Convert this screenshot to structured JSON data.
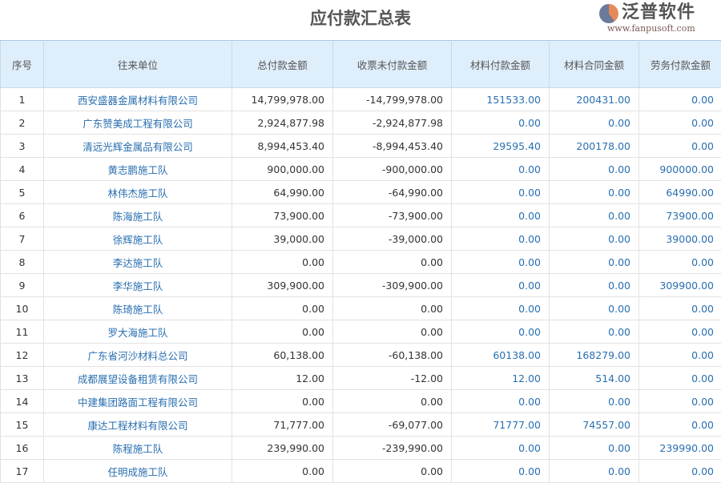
{
  "title": "应付款汇总表",
  "columns": [
    "序号",
    "往来单位",
    "总付款金额",
    "收票未付款金额",
    "材料付款金额",
    "材料合同金额",
    "劳务付款金额"
  ],
  "rows": [
    [
      "1",
      "西安盛器金属材料有限公司",
      "14,799,978.00",
      "-14,799,978.00",
      "151533.00",
      "200431.00",
      "0.00"
    ],
    [
      "2",
      "广东赞美成工程有限公司",
      "2,924,877.98",
      "-2,924,877.98",
      "0.00",
      "0.00",
      "0.00"
    ],
    [
      "3",
      "清远光辉金属品有限公司",
      "8,994,453.40",
      "-8,994,453.40",
      "29595.40",
      "200178.00",
      "0.00"
    ],
    [
      "4",
      "黄志鹏施工队",
      "900,000.00",
      "-900,000.00",
      "0.00",
      "0.00",
      "900000.00"
    ],
    [
      "5",
      "林伟杰施工队",
      "64,990.00",
      "-64,990.00",
      "0.00",
      "0.00",
      "64990.00"
    ],
    [
      "6",
      "陈海施工队",
      "73,900.00",
      "-73,900.00",
      "0.00",
      "0.00",
      "73900.00"
    ],
    [
      "7",
      "徐辉施工队",
      "39,000.00",
      "-39,000.00",
      "0.00",
      "0.00",
      "39000.00"
    ],
    [
      "8",
      "李达施工队",
      "0.00",
      "0.00",
      "0.00",
      "0.00",
      "0.00"
    ],
    [
      "9",
      "李华施工队",
      "309,900.00",
      "-309,900.00",
      "0.00",
      "0.00",
      "309900.00"
    ],
    [
      "10",
      "陈琦施工队",
      "0.00",
      "0.00",
      "0.00",
      "0.00",
      "0.00"
    ],
    [
      "11",
      "罗大海施工队",
      "0.00",
      "0.00",
      "0.00",
      "0.00",
      "0.00"
    ],
    [
      "12",
      "广东省河沙材料总公司",
      "60,138.00",
      "-60,138.00",
      "60138.00",
      "168279.00",
      "0.00"
    ],
    [
      "13",
      "成都展望设备租赁有限公司",
      "12.00",
      "-12.00",
      "12.00",
      "514.00",
      "0.00"
    ],
    [
      "14",
      "中建集团路面工程有限公司",
      "0.00",
      "0.00",
      "0.00",
      "0.00",
      "0.00"
    ],
    [
      "15",
      "康达工程材料有限公司",
      "71,777.00",
      "-69,077.00",
      "71777.00",
      "74557.00",
      "0.00"
    ],
    [
      "16",
      "陈程施工队",
      "239,990.00",
      "-239,990.00",
      "0.00",
      "0.00",
      "239990.00"
    ],
    [
      "17",
      "任明成施工队",
      "0.00",
      "0.00",
      "0.00",
      "0.00",
      "0.00"
    ]
  ],
  "watermark": {
    "brand": "泛普软件",
    "url": "www.fanpusoft.com"
  }
}
